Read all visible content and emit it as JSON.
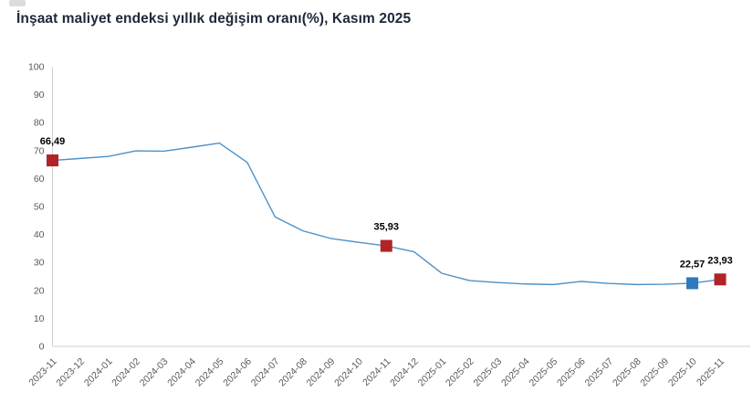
{
  "header": {
    "title": "İnşaat maliyet endeksi yıllık değişim oranı(%), Kasım 2025"
  },
  "chart_data": {
    "type": "line",
    "title": "İnşaat maliyet endeksi yıllık değişim oranı(%), Kasım 2025",
    "xlabel": "",
    "ylabel": "",
    "ylim": [
      0,
      100
    ],
    "yticks": [
      0,
      10,
      20,
      30,
      40,
      50,
      60,
      70,
      80,
      90,
      100
    ],
    "grid": false,
    "legend": "none",
    "line_color": "#4e91c9",
    "categories": [
      "2023-11",
      "2023-12",
      "2024-01",
      "2024-02",
      "2024-03",
      "2024-04",
      "2024-05",
      "2024-06",
      "2024-07",
      "2024-08",
      "2024-09",
      "2024-10",
      "2024-11",
      "2024-12",
      "2025-01",
      "2025-02",
      "2025-03",
      "2025-04",
      "2025-05",
      "2025-06",
      "2025-07",
      "2025-08",
      "2025-09",
      "2025-10",
      "2025-11"
    ],
    "values": [
      66.49,
      67.2,
      67.9,
      69.9,
      69.8,
      71.2,
      72.7,
      65.8,
      46.3,
      41.3,
      38.6,
      37.2,
      35.93,
      33.8,
      26.1,
      23.5,
      22.8,
      22.3,
      22.1,
      23.2,
      22.5,
      22.1,
      22.2,
      22.57,
      23.93
    ],
    "markers": [
      {
        "category": "2023-11",
        "value": 66.49,
        "label": "66,49",
        "color": "#b12326"
      },
      {
        "category": "2024-11",
        "value": 35.93,
        "label": "35,93",
        "color": "#b12326"
      },
      {
        "category": "2025-10",
        "value": 22.57,
        "label": "22,57",
        "color": "#2e7abc"
      },
      {
        "category": "2025-11",
        "value": 23.93,
        "label": "23,93",
        "color": "#b12326"
      }
    ]
  },
  "colors": {
    "axis_line": "#cfcfcf",
    "tick_text": "#595959",
    "data_label_text": "#000000",
    "title_text": "#20283a",
    "background": "#ffffff"
  }
}
